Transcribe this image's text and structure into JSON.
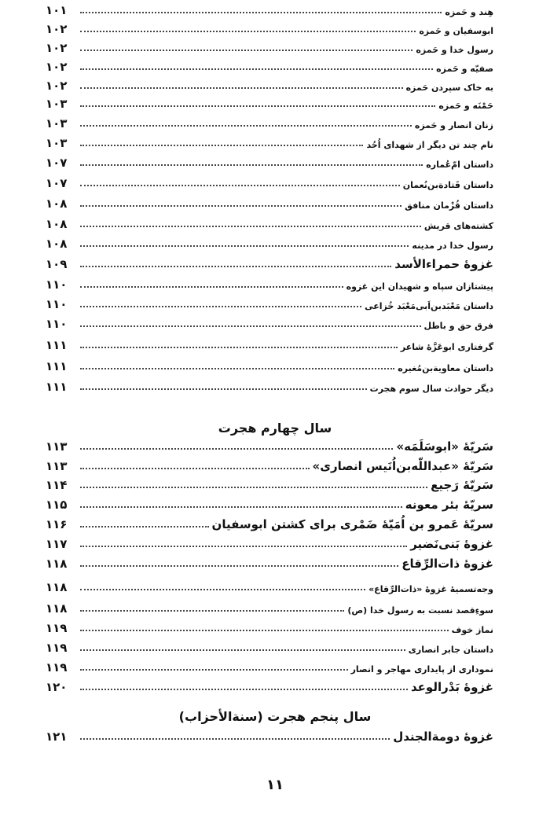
{
  "entries_a": [
    {
      "title": "هِند و حَمزه",
      "page": "۱۰۱",
      "level": "sub"
    },
    {
      "title": "ابوسفیان و حَمزه",
      "page": "۱۰۲",
      "level": "sub"
    },
    {
      "title": "رسول خدا و حَمزه",
      "page": "۱۰۲",
      "level": "sub"
    },
    {
      "title": "صفیّه و حَمزه",
      "page": "۱۰۲",
      "level": "sub"
    },
    {
      "title": "به خاک سپردن حَمزه",
      "page": "۱۰۲",
      "level": "sub"
    },
    {
      "title": "حَمْنَه و حَمزه",
      "page": "۱۰۳",
      "level": "sub"
    },
    {
      "title": "زنان انصار و حَمزه",
      "page": "۱۰۳",
      "level": "sub"
    },
    {
      "title": "نام چند تن دیگر از شهدای اُحُد",
      "page": "۱۰۳",
      "level": "sub"
    },
    {
      "title": "داستان امّ‌عُماره",
      "page": "۱۰۷",
      "level": "sub"
    },
    {
      "title": "داستان قَتادةبن‌نُعمان",
      "page": "۱۰۷",
      "level": "sub"
    },
    {
      "title": "داستان قُزْمان منافق",
      "page": "۱۰۸",
      "level": "sub"
    },
    {
      "title": "کشته‌های قریش",
      "page": "۱۰۸",
      "level": "sub"
    },
    {
      "title": "رسول خدا در مدینه",
      "page": "۱۰۸",
      "level": "sub"
    },
    {
      "title": "غزوهٔ حمراءالأسد",
      "page": "۱۰۹",
      "level": "main"
    },
    {
      "title": "پیشتازان سپاه و شهیدان این غزوه",
      "page": "۱۱۰",
      "level": "sub"
    },
    {
      "title": "داستان مَعْبَدبن‌اَبی‌مَعْبَد خُزاعی",
      "page": "۱۱۰",
      "level": "sub"
    },
    {
      "title": "فرق حق و باطل",
      "page": "۱۱۰",
      "level": "sub"
    },
    {
      "title": "گرفتاری ابوعَزَّهٔ شاعر",
      "page": "۱۱۱",
      "level": "sub"
    },
    {
      "title": "داستان معاویةبن‌مُغیره",
      "page": "۱۱۱",
      "level": "sub"
    },
    {
      "title": "دیگر حوادث سال سوم هجرت",
      "page": "۱۱۱",
      "level": "sub"
    }
  ],
  "heading_year4": "سال چهارم هجرت",
  "entries_b": [
    {
      "title": "سَریّهٔ «ابوسَلَمَه»",
      "page": "۱۱۳",
      "level": "main"
    },
    {
      "title": "سَریّهٔ «عبداللّه‌بن‌اُنَیس انصاری»",
      "page": "۱۱۳",
      "level": "main"
    },
    {
      "title": "سَریّهٔ رَجیع",
      "page": "۱۱۴",
      "level": "main"
    },
    {
      "title": "سریّهٔ بئر معونه",
      "page": "۱۱۵",
      "level": "main"
    },
    {
      "title": "سریّهٔ عَمرو بن اُمَیّهٔ ضَمْری برای کشتن ابوسفیان",
      "page": "۱۱۶",
      "level": "main"
    },
    {
      "title": "غزوهٔ بَنی‌نَضیر",
      "page": "۱۱۷",
      "level": "main"
    },
    {
      "title": "غزوهٔ ذات‌الرِّقاع",
      "page": "۱۱۸",
      "level": "main"
    },
    {
      "title": "وجه‌تسمیهٔ غزوهٔ «ذات‌الرِّقاع»",
      "page": "۱۱۸",
      "level": "sub"
    },
    {
      "title": "سوءِقصد نسبت به رسول خدا (ص)",
      "page": "۱۱۸",
      "level": "sub"
    },
    {
      "title": "نماز خوف",
      "page": "۱۱۹",
      "level": "sub"
    },
    {
      "title": "داستان جابر انصاری",
      "page": "۱۱۹",
      "level": "sub"
    },
    {
      "title": "نموداری از پایداری مهاجر و انصار",
      "page": "۱۱۹",
      "level": "sub"
    },
    {
      "title": "غزوهٔ بَدْرالوعد",
      "page": "۱۲۰",
      "level": "main"
    }
  ],
  "heading_year5": "سال پنجم هجرت (سنةالأحزاب)",
  "entries_c": [
    {
      "title": "غزوهٔ دومةالجندل",
      "page": "۱۲۱",
      "level": "main"
    }
  ],
  "page_number": "۱۱"
}
